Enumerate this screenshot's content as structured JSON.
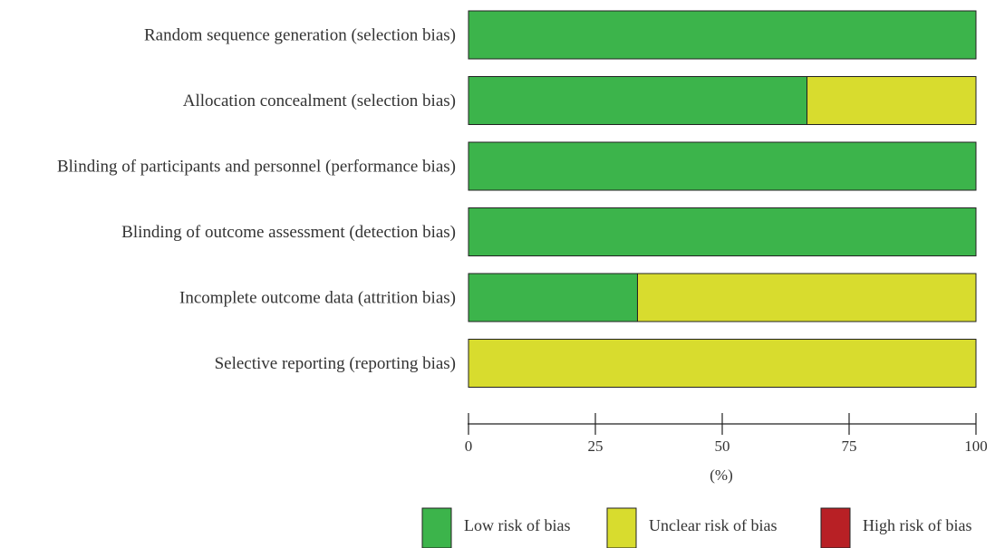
{
  "chart_data": {
    "type": "bar",
    "orientation": "horizontal",
    "stacked": true,
    "categories": [
      "Random sequence generation (selection bias)",
      "Allocation concealment (selection bias)",
      "Blinding of participants and personnel (performance bias)",
      "Blinding of outcome assessment (detection bias)",
      "Incomplete outcome data (attrition bias)",
      "Selective reporting (reporting bias)"
    ],
    "series": [
      {
        "name": "Low risk of bias",
        "color": "#3cb44b",
        "values": [
          100,
          66.7,
          100,
          100,
          33.3,
          0
        ]
      },
      {
        "name": "Unclear risk of bias",
        "color": "#d8dc2e",
        "values": [
          0,
          33.3,
          0,
          0,
          66.7,
          100
        ]
      },
      {
        "name": "High risk of bias",
        "color": "#b82025",
        "values": [
          0,
          0,
          0,
          0,
          0,
          0
        ]
      }
    ],
    "xlim": [
      0,
      100
    ],
    "xticks": [
      "0",
      "25",
      "50",
      "75",
      "100"
    ],
    "xlabel": "(%)",
    "legend_position": "bottom-right",
    "grid": false
  }
}
